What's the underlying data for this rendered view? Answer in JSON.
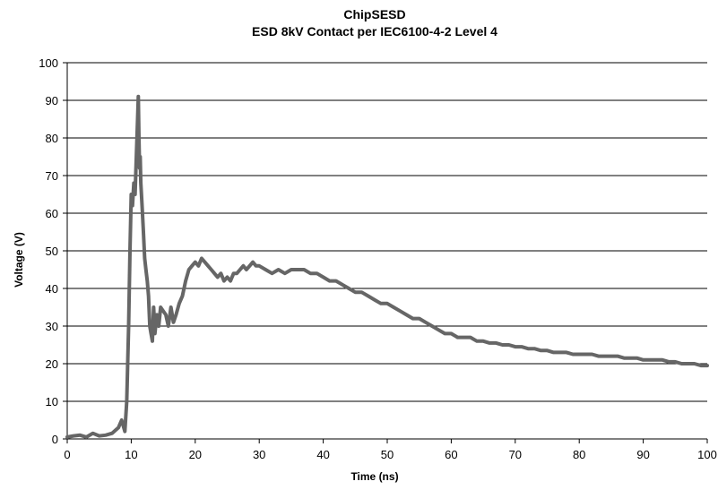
{
  "chart_data": {
    "type": "line",
    "title": "ChipSESD",
    "subtitle": "ESD  8kV Contact per IEC6100-4-2 Level 4",
    "xlabel": "Time (ns)",
    "ylabel": "Voltage (V)",
    "xlim": [
      0,
      100
    ],
    "ylim": [
      0,
      100
    ],
    "x_ticks": [
      0,
      10,
      20,
      30,
      40,
      50,
      60,
      70,
      80,
      90,
      100
    ],
    "y_ticks": [
      0,
      10,
      20,
      30,
      40,
      50,
      60,
      70,
      80,
      90,
      100
    ],
    "grid": "horizontal",
    "legend": "none",
    "line_color": "#666666",
    "series": [
      {
        "x": [
          0,
          1,
          2,
          3,
          4,
          5,
          6,
          7,
          8,
          8.5,
          9,
          9.3,
          9.6,
          9.8,
          10,
          10.2,
          10.4,
          10.6,
          10.8,
          11,
          11.1,
          11.2,
          11.3,
          11.4,
          11.5,
          11.7,
          11.9,
          12.1,
          12.3,
          12.5,
          12.7,
          12.9,
          13.1,
          13.3,
          13.5,
          13.7,
          14,
          14.3,
          14.6,
          15,
          15.4,
          15.8,
          16.2,
          16.6,
          17,
          17.5,
          18,
          18.5,
          19,
          19.5,
          20,
          20.5,
          21,
          21.5,
          22,
          22.5,
          23,
          23.5,
          24,
          24.5,
          25,
          25.5,
          26,
          26.5,
          27,
          27.5,
          28,
          28.5,
          29,
          29.5,
          30,
          31,
          32,
          33,
          34,
          35,
          36,
          37,
          38,
          39,
          40,
          41,
          42,
          43,
          44,
          45,
          46,
          47,
          48,
          49,
          50,
          51,
          52,
          53,
          54,
          55,
          56,
          57,
          58,
          59,
          60,
          61,
          62,
          63,
          64,
          65,
          66,
          67,
          68,
          69,
          70,
          71,
          72,
          73,
          74,
          75,
          76,
          77,
          78,
          79,
          80,
          81,
          82,
          83,
          84,
          85,
          86,
          87,
          88,
          89,
          90,
          91,
          92,
          93,
          94,
          95,
          96,
          97,
          98,
          99,
          100
        ],
        "y": [
          0.5,
          0.8,
          1.0,
          0.5,
          1.5,
          0.8,
          1.0,
          1.5,
          3,
          5,
          2,
          10,
          30,
          50,
          65,
          62,
          68,
          65,
          75,
          85,
          91,
          80,
          72,
          75,
          68,
          62,
          55,
          48,
          45,
          42,
          38,
          30,
          28,
          26,
          35,
          28,
          33,
          30,
          35,
          34,
          33,
          30,
          35,
          31,
          33,
          36,
          38,
          42,
          45,
          46,
          47,
          46,
          48,
          47,
          46,
          45,
          44,
          43,
          44,
          42,
          43,
          42,
          44,
          44,
          45,
          46,
          45,
          46,
          47,
          46,
          46,
          45,
          44,
          45,
          44,
          45,
          45,
          45,
          44,
          44,
          43,
          42,
          42,
          41,
          40,
          39,
          39,
          38,
          37,
          36,
          36,
          35,
          34,
          33,
          32,
          32,
          31,
          30,
          29,
          28,
          28,
          27,
          27,
          27,
          26,
          26,
          25.5,
          25.5,
          25,
          25,
          24.5,
          24.5,
          24,
          24,
          23.5,
          23.5,
          23,
          23,
          23,
          22.5,
          22.5,
          22.5,
          22.5,
          22,
          22,
          22,
          22,
          21.5,
          21.5,
          21.5,
          21,
          21,
          21,
          21,
          20.5,
          20.5,
          20,
          20,
          20,
          19.5,
          19.5
        ]
      }
    ]
  }
}
